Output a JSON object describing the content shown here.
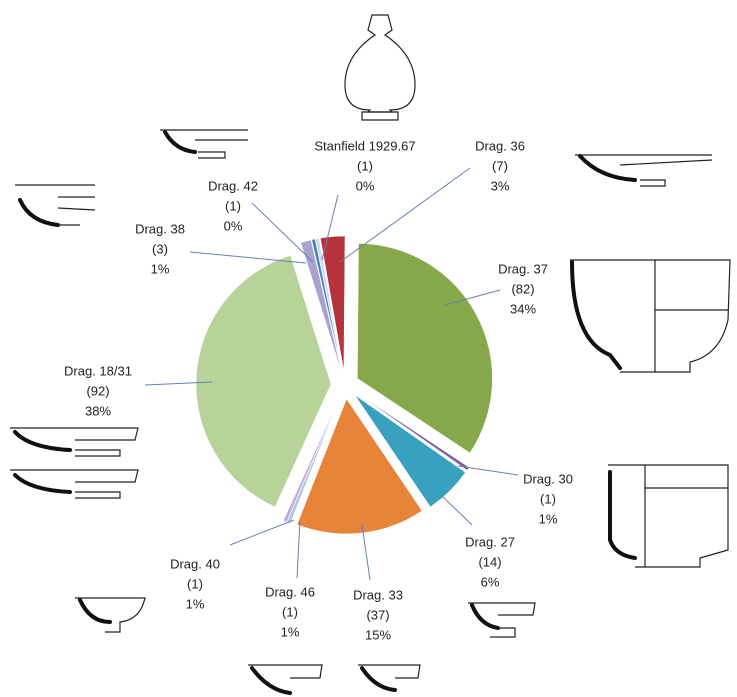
{
  "chart_data": {
    "type": "pie",
    "categories": [
      "Drag. 36",
      "Drag. 37",
      "Drag. 30",
      "Drag. 27",
      "Drag. 33",
      "Drag. 46",
      "Drag. 40",
      "Drag. 18/31",
      "Drag. 38",
      "Drag. 42",
      "Stanfield 1929.67"
    ],
    "values": [
      7,
      82,
      1,
      14,
      37,
      1,
      1,
      92,
      3,
      1,
      1
    ],
    "value_labels": [
      "(7)",
      "(82)",
      "(1)",
      "(14)",
      "(37)",
      "(1)",
      "(1)",
      "(92)",
      "(3)",
      "(1)",
      "(1)"
    ],
    "percents": [
      3,
      34,
      1,
      6,
      15,
      1,
      1,
      38,
      1,
      0,
      0
    ],
    "percent_labels": [
      "3%",
      "34%",
      "1%",
      "6%",
      "15%",
      "1%",
      "1%",
      "38%",
      "1%",
      "0%",
      "0%"
    ],
    "colors": [
      "#b5333c",
      "#86a84a",
      "#7d60a0",
      "#3aa0c0",
      "#e8843a",
      "#a9c4e8",
      "#c5a8d8",
      "#b8d39a",
      "#a7a3d0",
      "#4f7fbf",
      "#cfd9ec"
    ]
  }
}
